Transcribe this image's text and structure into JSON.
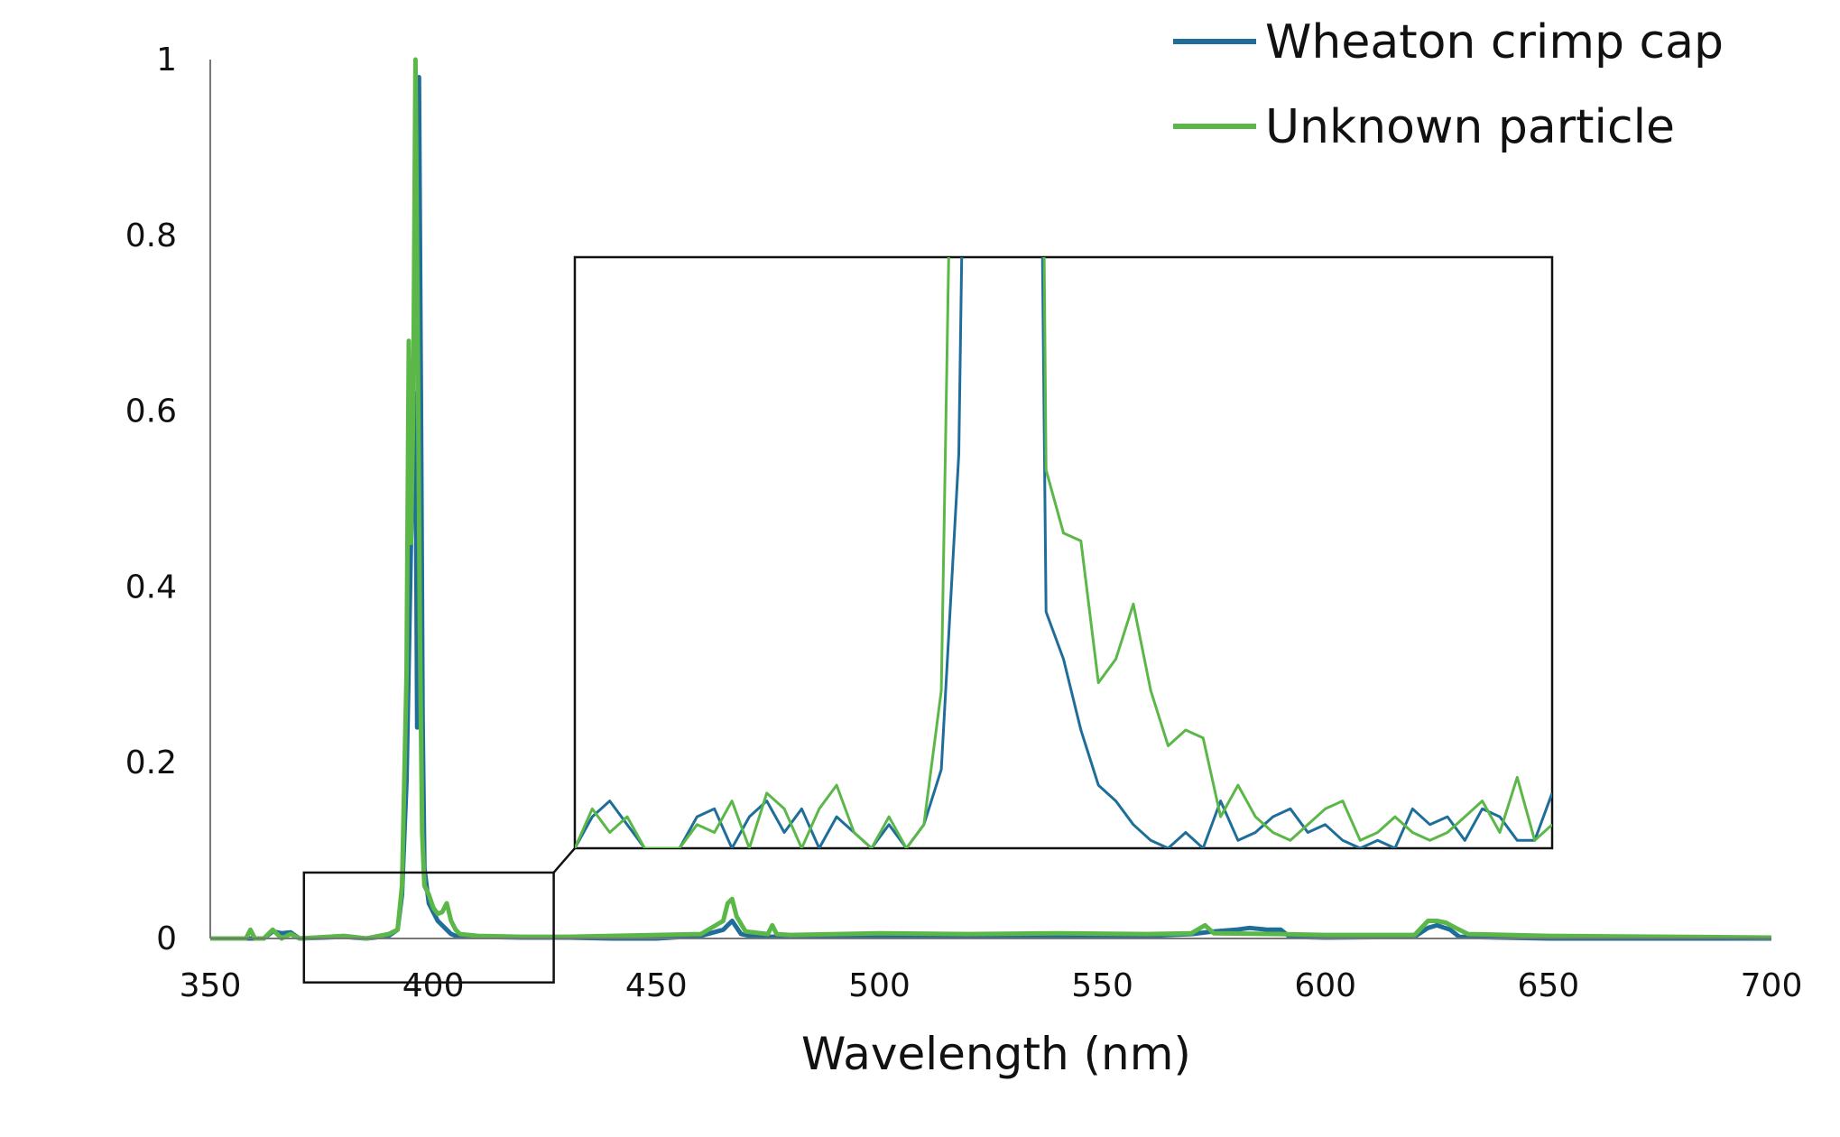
{
  "chart_data": {
    "type": "line",
    "title": "",
    "xlabel": "Wavelength (nm)",
    "ylabel": "",
    "xlim": [
      350,
      700
    ],
    "ylim": [
      0,
      1
    ],
    "x_ticks": [
      350,
      400,
      450,
      500,
      550,
      600,
      650,
      700
    ],
    "x_tick_labels": [
      "350",
      "400",
      "450",
      "500",
      "550",
      "600",
      "650",
      "700"
    ],
    "y_ticks": [
      0,
      0.2,
      0.4,
      0.6,
      0.8,
      1
    ],
    "y_tick_labels": [
      "0",
      "0.2",
      "0.4",
      "0.6",
      "0.8",
      "1"
    ],
    "grid": false,
    "legend_position": "top-right",
    "colors": {
      "Wheaton crimp cap": "#1f6e9a",
      "Unknown particle": "#5bb848"
    },
    "series": [
      {
        "name": "Wheaton crimp cap",
        "x": [
          350,
          362,
          364,
          366,
          368,
          370,
          380,
          385,
          390,
          392,
          393,
          394,
          395,
          396,
          396.4,
          396.8,
          397.3,
          397.6,
          398,
          399,
          400,
          401,
          402,
          403,
          404,
          405,
          410,
          420,
          430,
          440,
          450,
          460,
          465,
          467,
          469,
          472,
          480,
          500,
          520,
          540,
          560,
          570,
          575,
          580,
          583,
          587,
          590,
          592,
          600,
          620,
          623,
          625,
          628,
          630,
          650,
          700
        ],
        "y": [
          0,
          0,
          0.008,
          0.006,
          0.007,
          0,
          0.002,
          0,
          0.003,
          0.01,
          0.05,
          0.18,
          0.45,
          0.62,
          0.24,
          0.98,
          0.55,
          0.25,
          0.08,
          0.04,
          0.03,
          0.02,
          0.015,
          0.01,
          0.005,
          0.003,
          0.002,
          0.001,
          0.001,
          0,
          0,
          0.003,
          0.01,
          0.02,
          0.005,
          0.002,
          0.002,
          0.003,
          0.002,
          0.003,
          0.003,
          0.005,
          0.008,
          0.01,
          0.012,
          0.01,
          0.01,
          0.002,
          0.001,
          0.002,
          0.012,
          0.015,
          0.01,
          0.002,
          0,
          0
        ]
      },
      {
        "name": "Unknown particle",
        "x": [
          350,
          358,
          359,
          360,
          362,
          364,
          366,
          368,
          370,
          380,
          385,
          390,
          392,
          393,
          394,
          394.5,
          395,
          395.5,
          396,
          396.5,
          397,
          397.5,
          398,
          399,
          400,
          401,
          402,
          403,
          404,
          405,
          406,
          410,
          420,
          430,
          440,
          450,
          460,
          465,
          466,
          467,
          468,
          470,
          475,
          476,
          477,
          480,
          500,
          520,
          540,
          560,
          570,
          573,
          575,
          590,
          600,
          620,
          623,
          625,
          627,
          630,
          632,
          650,
          700
        ],
        "y": [
          0,
          0,
          0.01,
          0,
          0,
          0.01,
          0,
          0.005,
          0,
          0.003,
          0,
          0.005,
          0.01,
          0.06,
          0.3,
          0.68,
          0.45,
          0.6,
          1.0,
          0.7,
          0.35,
          0.12,
          0.06,
          0.05,
          0.035,
          0.028,
          0.03,
          0.04,
          0.02,
          0.01,
          0.005,
          0.003,
          0.002,
          0.002,
          0.003,
          0.004,
          0.005,
          0.02,
          0.04,
          0.045,
          0.025,
          0.008,
          0.005,
          0.015,
          0.005,
          0.004,
          0.006,
          0.005,
          0.006,
          0.005,
          0.006,
          0.015,
          0.006,
          0.005,
          0.004,
          0.004,
          0.02,
          0.02,
          0.018,
          0.01,
          0.005,
          0.003,
          0.001
        ]
      }
    ],
    "inset": {
      "description_window_x": [
        371,
        427
      ],
      "description_window_y": [
        -0.05,
        0.075
      ],
      "series": [
        {
          "name": "Wheaton crimp cap",
          "x": [
            371,
            372,
            373,
            374,
            375,
            376,
            377,
            378,
            379,
            380,
            381,
            382,
            383,
            384,
            385,
            386,
            387,
            388,
            389,
            390,
            391,
            392,
            393,
            394,
            395,
            396,
            397,
            398,
            399,
            400,
            401,
            402,
            403,
            404,
            405,
            406,
            407,
            408,
            409,
            410,
            411,
            412,
            413,
            414,
            415,
            416,
            417,
            418,
            419,
            420,
            421,
            422,
            423,
            424,
            425,
            426,
            427
          ],
          "y": [
            0,
            0.004,
            0.006,
            0.003,
            0,
            0,
            0,
            0.004,
            0.005,
            0,
            0.004,
            0.006,
            0.002,
            0.005,
            0,
            0.004,
            0.002,
            0,
            0.003,
            0,
            0.003,
            0.01,
            0.05,
            0.2,
            0.3,
            0.3,
            0.25,
            0.03,
            0.024,
            0.015,
            0.008,
            0.006,
            0.003,
            0.001,
            0,
            0.002,
            0,
            0.006,
            0.001,
            0.002,
            0.004,
            0.005,
            0.002,
            0.003,
            0.001,
            0,
            0.001,
            0,
            0.005,
            0.003,
            0.004,
            0.001,
            0.005,
            0.004,
            0.001,
            0.001,
            0.007
          ]
        },
        {
          "name": "Unknown particle",
          "x": [
            371,
            372,
            373,
            374,
            375,
            376,
            377,
            378,
            379,
            380,
            381,
            382,
            383,
            384,
            385,
            386,
            387,
            388,
            389,
            390,
            391,
            392,
            393,
            394,
            395,
            396,
            397,
            398,
            399,
            400,
            401,
            402,
            403,
            404,
            405,
            406,
            407,
            408,
            409,
            410,
            411,
            412,
            413,
            414,
            415,
            416,
            417,
            418,
            419,
            420,
            421,
            422,
            423,
            424,
            425,
            426,
            427
          ],
          "y": [
            0,
            0.005,
            0.002,
            0.004,
            0,
            0,
            0,
            0.003,
            0.002,
            0.006,
            0,
            0.007,
            0.005,
            0,
            0.005,
            0.008,
            0.002,
            0,
            0.004,
            0,
            0.003,
            0.02,
            0.15,
            0.3,
            0.3,
            0.3,
            0.3,
            0.048,
            0.04,
            0.039,
            0.021,
            0.024,
            0.031,
            0.02,
            0.013,
            0.015,
            0.014,
            0.004,
            0.008,
            0.004,
            0.002,
            0.001,
            0.003,
            0.005,
            0.006,
            0.001,
            0.002,
            0.004,
            0.002,
            0.001,
            0.002,
            0.004,
            0.006,
            0.002,
            0.009,
            0.001,
            0.003
          ]
        }
      ]
    }
  }
}
